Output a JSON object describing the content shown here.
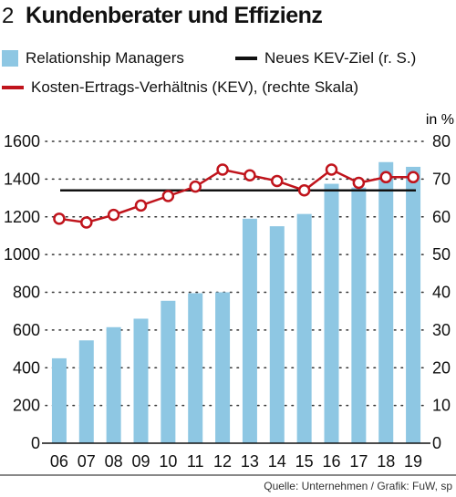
{
  "header": {
    "number": "2",
    "title": "Kundenberater und Effizienz"
  },
  "legend": {
    "bars": "Relationship Managers",
    "target": "Neues KEV-Ziel (r. S.)",
    "line": "Kosten-Ertrags-Verhältnis (KEV), (rechte Skala)"
  },
  "source": "Quelle: Unternehmen / Grafik: FuW, sp",
  "colors": {
    "bar": "#8ec7e3",
    "line": "#c0141c",
    "target": "#111111",
    "grid": "#333333"
  },
  "chart_data": {
    "type": "bar",
    "categories": [
      "06",
      "07",
      "08",
      "09",
      "10",
      "11",
      "12",
      "13",
      "14",
      "15",
      "16",
      "17",
      "18",
      "19"
    ],
    "series": [
      {
        "name": "Relationship Managers",
        "type": "bar",
        "axis": "left",
        "values": [
          450,
          545,
          615,
          660,
          755,
          795,
          800,
          1190,
          1150,
          1215,
          1375,
          1355,
          1490,
          1465
        ]
      },
      {
        "name": "Kosten-Ertrags-Verhältnis (KEV), (rechte Skala)",
        "type": "line",
        "axis": "right",
        "values": [
          59.5,
          58.5,
          60.5,
          63,
          65.5,
          68,
          72.5,
          71,
          69.5,
          67,
          72.5,
          69,
          70.5,
          70.5
        ]
      },
      {
        "name": "Neues KEV-Ziel (r. S.)",
        "type": "hline",
        "axis": "right",
        "value": 67
      }
    ],
    "ylim_left": [
      0,
      1600
    ],
    "yticks_left": [
      "0",
      "200",
      "400",
      "600",
      "800",
      "1000",
      "1200",
      "1400",
      "1600"
    ],
    "ylim_right": [
      0,
      80
    ],
    "yticks_right": [
      "0",
      "10",
      "20",
      "30",
      "40",
      "50",
      "60",
      "70",
      "80"
    ],
    "right_unit": "in %",
    "grid": "horizontal dotted"
  }
}
